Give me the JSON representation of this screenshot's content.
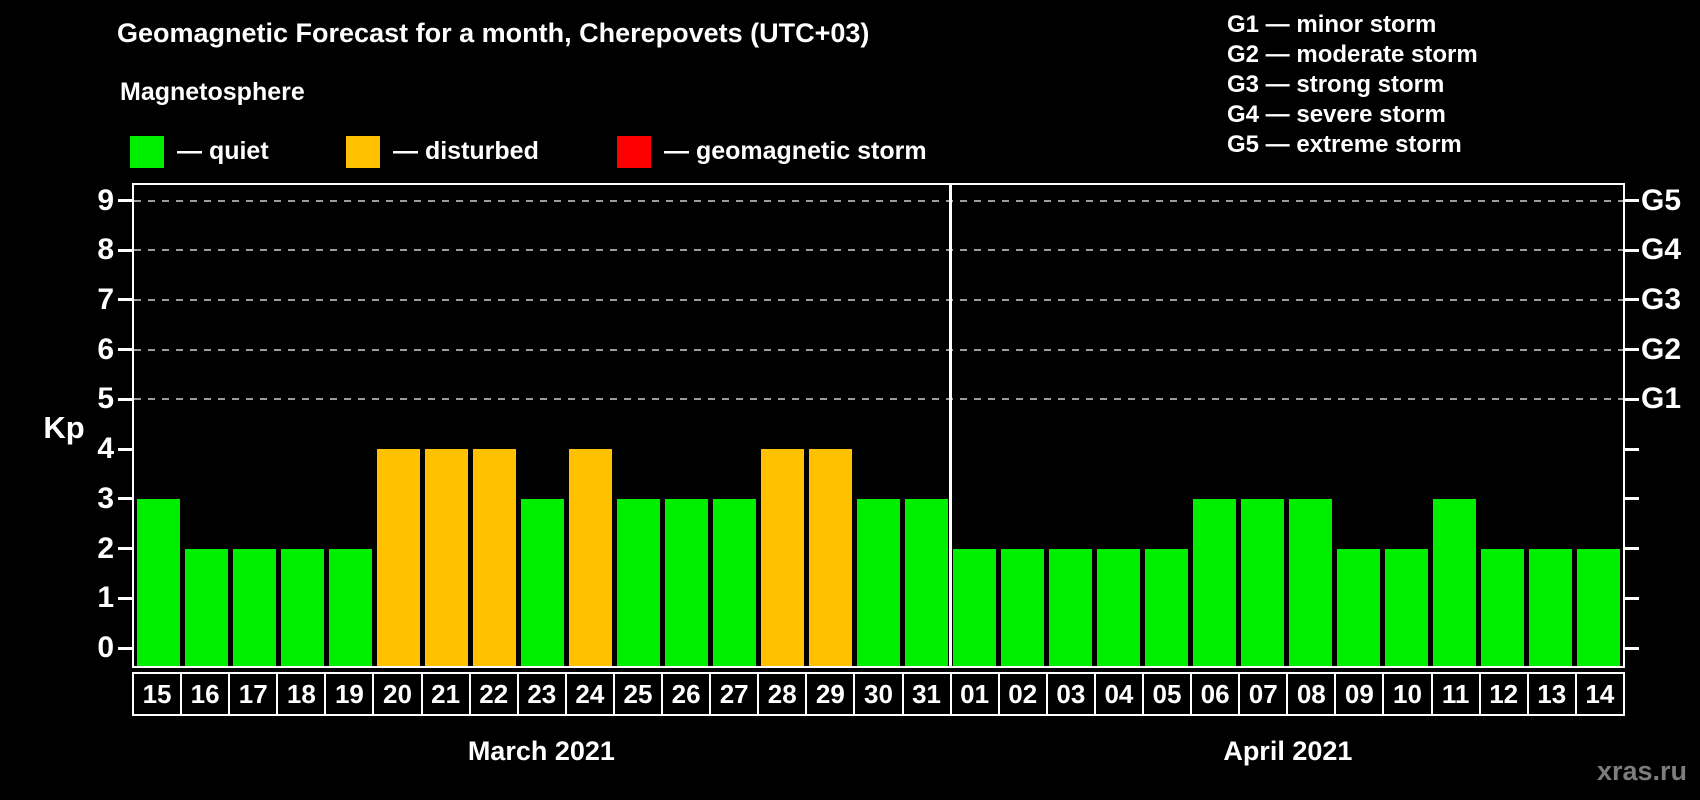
{
  "title": "Geomagnetic Forecast for a month, Cherepovets (UTC+03)",
  "subtitle": "Magnetosphere",
  "legend": {
    "items": [
      {
        "key": "quiet",
        "label": "— quiet",
        "color": "#00ee00"
      },
      {
        "key": "disturbed",
        "label": "— disturbed",
        "color": "#ffc000"
      },
      {
        "key": "storm",
        "label": "— geomagnetic storm",
        "color": "#ff0000"
      }
    ]
  },
  "g_legend": [
    "G1 — minor storm",
    "G2 — moderate storm",
    "G3 — strong storm",
    "G4 — severe storm",
    "G5 — extreme storm"
  ],
  "watermark": "xras.ru",
  "chart_data": {
    "type": "bar",
    "ylabel": "Kp",
    "ylim": [
      0,
      9
    ],
    "yticks": [
      0,
      1,
      2,
      3,
      4,
      5,
      6,
      7,
      8,
      9
    ],
    "gridlines_at": [
      5,
      6,
      7,
      8,
      9
    ],
    "grid": "dashed horizontal at G-storm levels only",
    "legend_position": "top-left (status colors), top-right (G levels)",
    "colors": {
      "quiet": "#00ee00",
      "disturbed": "#ffc000",
      "storm": "#ff0000"
    },
    "right_axis": [
      {
        "kp": 5,
        "label": "G1"
      },
      {
        "kp": 6,
        "label": "G2"
      },
      {
        "kp": 7,
        "label": "G3"
      },
      {
        "kp": 8,
        "label": "G4"
      },
      {
        "kp": 9,
        "label": "G5"
      }
    ],
    "months": [
      {
        "label": "March 2021",
        "days": [
          {
            "day": "15",
            "kp": 3,
            "status": "quiet"
          },
          {
            "day": "16",
            "kp": 2,
            "status": "quiet"
          },
          {
            "day": "17",
            "kp": 2,
            "status": "quiet"
          },
          {
            "day": "18",
            "kp": 2,
            "status": "quiet"
          },
          {
            "day": "19",
            "kp": 2,
            "status": "quiet"
          },
          {
            "day": "20",
            "kp": 4,
            "status": "disturbed"
          },
          {
            "day": "21",
            "kp": 4,
            "status": "disturbed"
          },
          {
            "day": "22",
            "kp": 4,
            "status": "disturbed"
          },
          {
            "day": "23",
            "kp": 3,
            "status": "quiet"
          },
          {
            "day": "24",
            "kp": 4,
            "status": "disturbed"
          },
          {
            "day": "25",
            "kp": 3,
            "status": "quiet"
          },
          {
            "day": "26",
            "kp": 3,
            "status": "quiet"
          },
          {
            "day": "27",
            "kp": 3,
            "status": "quiet"
          },
          {
            "day": "28",
            "kp": 4,
            "status": "disturbed"
          },
          {
            "day": "29",
            "kp": 4,
            "status": "disturbed"
          },
          {
            "day": "30",
            "kp": 3,
            "status": "quiet"
          },
          {
            "day": "31",
            "kp": 3,
            "status": "quiet"
          }
        ]
      },
      {
        "label": "April 2021",
        "days": [
          {
            "day": "01",
            "kp": 2,
            "status": "quiet"
          },
          {
            "day": "02",
            "kp": 2,
            "status": "quiet"
          },
          {
            "day": "03",
            "kp": 2,
            "status": "quiet"
          },
          {
            "day": "04",
            "kp": 2,
            "status": "quiet"
          },
          {
            "day": "05",
            "kp": 2,
            "status": "quiet"
          },
          {
            "day": "06",
            "kp": 3,
            "status": "quiet"
          },
          {
            "day": "07",
            "kp": 3,
            "status": "quiet"
          },
          {
            "day": "08",
            "kp": 3,
            "status": "quiet"
          },
          {
            "day": "09",
            "kp": 2,
            "status": "quiet"
          },
          {
            "day": "10",
            "kp": 2,
            "status": "quiet"
          },
          {
            "day": "11",
            "kp": 3,
            "status": "quiet"
          },
          {
            "day": "12",
            "kp": 2,
            "status": "quiet"
          },
          {
            "day": "13",
            "kp": 2,
            "status": "quiet"
          },
          {
            "day": "14",
            "kp": 2,
            "status": "quiet"
          }
        ]
      }
    ]
  }
}
